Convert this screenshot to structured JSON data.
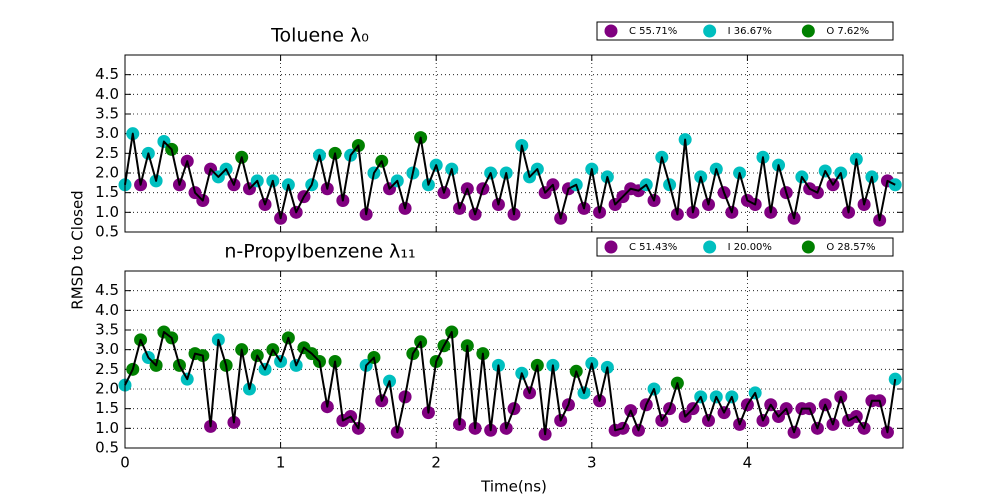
{
  "chart_data": [
    {
      "type": "line",
      "title": "Toluene  λ₀",
      "ylabel": "RMSD to Closed",
      "xlim": [
        0,
        5
      ],
      "ylim": [
        0.5,
        5.0
      ],
      "xticks": [
        0,
        1,
        2,
        3,
        4
      ],
      "show_xtick_labels": false,
      "yticks": [
        0.5,
        {
          "value": 1,
          "label": "1.0"
        },
        1.5,
        {
          "value": 2,
          "label": "2.0"
        },
        2.5,
        {
          "value": 3,
          "label": "3.0"
        },
        3.5,
        {
          "value": 4,
          "label": "4.0"
        },
        4.5
      ],
      "grid": true,
      "legend": "top-right",
      "line_color": "#000000",
      "x": [
        0,
        0.05,
        0.1,
        0.15,
        0.2,
        0.25,
        0.3,
        0.35,
        0.4,
        0.45,
        0.5,
        0.55,
        0.6,
        0.65,
        0.7,
        0.75,
        0.8,
        0.85,
        0.9,
        0.95,
        1,
        1.05,
        1.1,
        1.15,
        1.2,
        1.25,
        1.3,
        1.35,
        1.4,
        1.45,
        1.5,
        1.55,
        1.6,
        1.65,
        1.7,
        1.75,
        1.8,
        1.85,
        1.9,
        1.95,
        2,
        2.05,
        2.1,
        2.15,
        2.2,
        2.25,
        2.3,
        2.35,
        2.4,
        2.45,
        2.5,
        2.55,
        2.6,
        2.65,
        2.7,
        2.75,
        2.8,
        2.85,
        2.9,
        2.95,
        3,
        3.05,
        3.1,
        3.15,
        3.2,
        3.25,
        3.3,
        3.35,
        3.4,
        3.45,
        3.5,
        3.55,
        3.6,
        3.65,
        3.7,
        3.75,
        3.8,
        3.85,
        3.9,
        3.95,
        4,
        4.05,
        4.1,
        4.15,
        4.2,
        4.25,
        4.3,
        4.35,
        4.4,
        4.45,
        4.5,
        4.55,
        4.6,
        4.65,
        4.7,
        4.75,
        4.8,
        4.85,
        4.9,
        4.95
      ],
      "values": [
        1.7,
        3.0,
        1.7,
        2.5,
        1.8,
        2.8,
        2.6,
        1.7,
        2.3,
        1.5,
        1.3,
        2.1,
        1.9,
        2.1,
        1.7,
        2.4,
        1.6,
        1.8,
        1.2,
        1.8,
        0.85,
        1.7,
        1.0,
        1.4,
        1.7,
        2.45,
        1.6,
        2.5,
        1.3,
        2.45,
        2.7,
        0.95,
        2.0,
        2.3,
        1.6,
        1.8,
        1.1,
        2.0,
        2.9,
        1.7,
        2.2,
        1.5,
        2.1,
        1.1,
        1.6,
        0.95,
        1.6,
        2.0,
        1.2,
        2.0,
        0.95,
        2.7,
        1.9,
        2.1,
        1.5,
        1.7,
        0.85,
        1.6,
        1.7,
        1.1,
        2.1,
        1.0,
        1.9,
        1.2,
        1.4,
        1.6,
        1.55,
        1.7,
        1.3,
        2.4,
        1.7,
        0.95,
        2.85,
        1.0,
        1.9,
        1.2,
        2.1,
        1.5,
        1.0,
        2.0,
        1.3,
        1.2,
        2.4,
        1.0,
        2.2,
        1.5,
        0.85,
        1.9,
        1.6,
        1.5,
        2.05,
        1.7,
        2.0,
        1.0,
        2.35,
        1.2,
        1.9,
        0.8,
        1.8,
        1.7
      ],
      "series": [
        {
          "name": "C 55.71%",
          "color": "#800080",
          "x": [
            0.1,
            0.35,
            0.4,
            0.45,
            0.5,
            0.55,
            0.7,
            0.8,
            0.9,
            1,
            1.1,
            1.15,
            1.3,
            1.4,
            1.55,
            1.7,
            1.8,
            2.05,
            2.15,
            2.2,
            2.25,
            2.3,
            2.4,
            2.5,
            2.7,
            2.75,
            2.8,
            2.85,
            2.95,
            3.05,
            3.15,
            3.2,
            3.25,
            3.3,
            3.4,
            3.55,
            3.65,
            3.75,
            3.85,
            3.9,
            4,
            4.05,
            4.15,
            4.25,
            4.3,
            4.4,
            4.45,
            4.55,
            4.65,
            4.75,
            4.85,
            4.9
          ],
          "values": [
            1.7,
            1.7,
            2.3,
            1.5,
            1.3,
            2.1,
            1.7,
            1.6,
            1.2,
            0.85,
            1.0,
            1.4,
            1.6,
            1.3,
            0.95,
            1.6,
            1.1,
            1.5,
            1.1,
            1.6,
            0.95,
            1.6,
            1.2,
            0.95,
            1.5,
            1.7,
            0.85,
            1.6,
            1.1,
            1.0,
            1.2,
            1.4,
            1.6,
            1.55,
            1.3,
            0.95,
            1.0,
            1.2,
            1.5,
            1.0,
            1.3,
            1.2,
            1.0,
            1.5,
            0.85,
            1.6,
            1.5,
            1.7,
            1.0,
            1.2,
            0.8,
            1.8
          ]
        },
        {
          "name": "I 36.67%",
          "color": "#00bfbf",
          "x": [
            0,
            0.05,
            0.15,
            0.2,
            0.25,
            0.6,
            0.65,
            0.85,
            0.95,
            1.05,
            1.2,
            1.25,
            1.45,
            1.6,
            1.75,
            1.85,
            1.95,
            2,
            2.1,
            2.35,
            2.45,
            2.55,
            2.6,
            2.65,
            2.9,
            3,
            3.1,
            3.35,
            3.45,
            3.5,
            3.6,
            3.7,
            3.8,
            3.95,
            4.1,
            4.2,
            4.35,
            4.5,
            4.6,
            4.7,
            4.8,
            4.95
          ],
          "values": [
            1.7,
            3.0,
            2.5,
            1.8,
            2.8,
            1.9,
            2.1,
            1.8,
            1.8,
            1.7,
            1.7,
            2.45,
            2.45,
            2.0,
            1.8,
            2.0,
            1.7,
            2.2,
            2.1,
            2.0,
            2.0,
            2.7,
            1.9,
            2.1,
            1.7,
            2.1,
            1.9,
            1.7,
            2.4,
            1.7,
            2.85,
            1.9,
            2.1,
            2.0,
            2.4,
            2.2,
            1.9,
            2.05,
            2.0,
            2.35,
            1.9,
            1.7
          ]
        },
        {
          "name": "O 7.62%",
          "color": "#008000",
          "x": [
            0.3,
            0.75,
            1.35,
            1.5,
            1.65,
            1.9
          ],
          "values": [
            2.6,
            2.4,
            2.5,
            2.7,
            2.3,
            2.9
          ]
        }
      ]
    },
    {
      "type": "line",
      "title": "n-Propylbenzene  λ₁₁",
      "xlabel": "Time(ns)",
      "xlim": [
        0,
        5
      ],
      "ylim": [
        0.5,
        5.0
      ],
      "xticks": [
        0,
        1,
        2,
        3,
        4
      ],
      "show_xtick_labels": true,
      "yticks": [
        0.5,
        {
          "value": 1,
          "label": "1.0"
        },
        1.5,
        {
          "value": 2,
          "label": "2.0"
        },
        2.5,
        {
          "value": 3,
          "label": "3.0"
        },
        3.5,
        {
          "value": 4,
          "label": "4.0"
        },
        4.5
      ],
      "grid": true,
      "legend": "top-right",
      "line_color": "#000000",
      "x": [
        0,
        0.05,
        0.1,
        0.15,
        0.2,
        0.25,
        0.3,
        0.35,
        0.4,
        0.45,
        0.5,
        0.55,
        0.6,
        0.65,
        0.7,
        0.75,
        0.8,
        0.85,
        0.9,
        0.95,
        1,
        1.05,
        1.1,
        1.15,
        1.2,
        1.25,
        1.3,
        1.35,
        1.4,
        1.45,
        1.5,
        1.55,
        1.6,
        1.65,
        1.7,
        1.75,
        1.8,
        1.85,
        1.9,
        1.95,
        2,
        2.05,
        2.1,
        2.15,
        2.2,
        2.25,
        2.3,
        2.35,
        2.4,
        2.45,
        2.5,
        2.55,
        2.6,
        2.65,
        2.7,
        2.75,
        2.8,
        2.85,
        2.9,
        2.95,
        3,
        3.05,
        3.1,
        3.15,
        3.2,
        3.25,
        3.3,
        3.35,
        3.4,
        3.45,
        3.5,
        3.55,
        3.6,
        3.65,
        3.7,
        3.75,
        3.8,
        3.85,
        3.9,
        3.95,
        4,
        4.05,
        4.1,
        4.15,
        4.2,
        4.25,
        4.3,
        4.35,
        4.4,
        4.45,
        4.5,
        4.55,
        4.6,
        4.65,
        4.7,
        4.75,
        4.8,
        4.85,
        4.9,
        4.95
      ],
      "values": [
        2.1,
        2.5,
        3.25,
        2.8,
        2.6,
        3.45,
        3.3,
        2.6,
        2.25,
        2.9,
        2.85,
        1.05,
        3.25,
        2.6,
        1.15,
        3.0,
        2.0,
        2.85,
        2.5,
        3.0,
        2.7,
        3.3,
        2.6,
        3.05,
        2.9,
        2.7,
        1.55,
        2.7,
        1.2,
        1.3,
        1.0,
        2.6,
        2.8,
        1.7,
        2.2,
        0.9,
        1.8,
        2.9,
        3.2,
        1.4,
        2.7,
        3.1,
        3.45,
        1.1,
        3.1,
        1.0,
        2.9,
        0.95,
        2.6,
        1.0,
        1.5,
        2.4,
        1.9,
        2.6,
        0.85,
        2.6,
        1.2,
        1.6,
        2.45,
        1.9,
        2.65,
        1.7,
        2.55,
        0.95,
        1.0,
        1.45,
        0.95,
        1.6,
        2.0,
        1.2,
        1.5,
        2.15,
        1.3,
        1.5,
        1.8,
        1.2,
        1.8,
        1.4,
        1.8,
        1.1,
        1.6,
        1.9,
        1.2,
        1.6,
        1.3,
        1.5,
        0.9,
        1.5,
        1.5,
        1.0,
        1.6,
        1.1,
        1.8,
        1.2,
        1.3,
        1.0,
        1.7,
        1.7,
        0.9,
        2.25
      ],
      "series": [
        {
          "name": "C 51.43%",
          "color": "#800080",
          "x": [
            0.55,
            0.7,
            1.3,
            1.4,
            1.45,
            1.5,
            1.65,
            1.75,
            1.8,
            1.95,
            2.15,
            2.25,
            2.35,
            2.45,
            2.5,
            2.6,
            2.7,
            2.8,
            2.85,
            3.05,
            3.15,
            3.2,
            3.25,
            3.3,
            3.35,
            3.45,
            3.5,
            3.6,
            3.65,
            3.75,
            3.85,
            3.95,
            4,
            4.1,
            4.15,
            4.2,
            4.25,
            4.3,
            4.35,
            4.4,
            4.45,
            4.5,
            4.55,
            4.6,
            4.65,
            4.7,
            4.75,
            4.8,
            4.85,
            4.9
          ],
          "values": [
            1.05,
            1.15,
            1.55,
            1.2,
            1.3,
            1.0,
            1.7,
            0.9,
            1.8,
            1.4,
            1.1,
            1.0,
            0.95,
            1.0,
            1.5,
            1.9,
            0.85,
            1.2,
            1.6,
            1.7,
            0.95,
            1.0,
            1.45,
            0.95,
            1.6,
            1.2,
            1.5,
            1.3,
            1.5,
            1.2,
            1.4,
            1.1,
            1.6,
            1.2,
            1.6,
            1.3,
            1.5,
            0.9,
            1.5,
            1.5,
            1.0,
            1.6,
            1.1,
            1.8,
            1.2,
            1.3,
            1.0,
            1.7,
            1.7,
            0.9
          ]
        },
        {
          "name": "I 20.00%",
          "color": "#00bfbf",
          "x": [
            0,
            0.15,
            0.4,
            0.6,
            0.8,
            0.9,
            1,
            1.1,
            1.55,
            1.7,
            2.4,
            2.55,
            2.75,
            2.95,
            3,
            3.1,
            3.4,
            3.7,
            3.8,
            3.9,
            4.05,
            4.95
          ],
          "values": [
            2.1,
            2.8,
            2.25,
            3.25,
            2.0,
            2.5,
            2.7,
            2.6,
            2.6,
            2.2,
            2.6,
            2.4,
            2.6,
            1.9,
            2.65,
            2.55,
            2.0,
            1.8,
            1.8,
            1.8,
            1.9,
            2.25
          ]
        },
        {
          "name": "O 28.57%",
          "color": "#008000",
          "x": [
            0.05,
            0.1,
            0.2,
            0.25,
            0.3,
            0.35,
            0.45,
            0.5,
            0.65,
            0.75,
            0.85,
            0.95,
            1.05,
            1.15,
            1.2,
            1.25,
            1.35,
            1.6,
            1.85,
            1.9,
            2,
            2.05,
            2.1,
            2.2,
            2.3,
            2.65,
            2.9,
            3.55
          ],
          "values": [
            2.5,
            3.25,
            2.6,
            3.45,
            3.3,
            2.6,
            2.9,
            2.85,
            2.6,
            3.0,
            2.85,
            3.0,
            3.3,
            3.05,
            2.9,
            2.7,
            2.7,
            2.8,
            2.9,
            3.2,
            2.7,
            3.1,
            3.45,
            3.1,
            2.9,
            2.6,
            2.45,
            2.15
          ]
        }
      ]
    }
  ]
}
